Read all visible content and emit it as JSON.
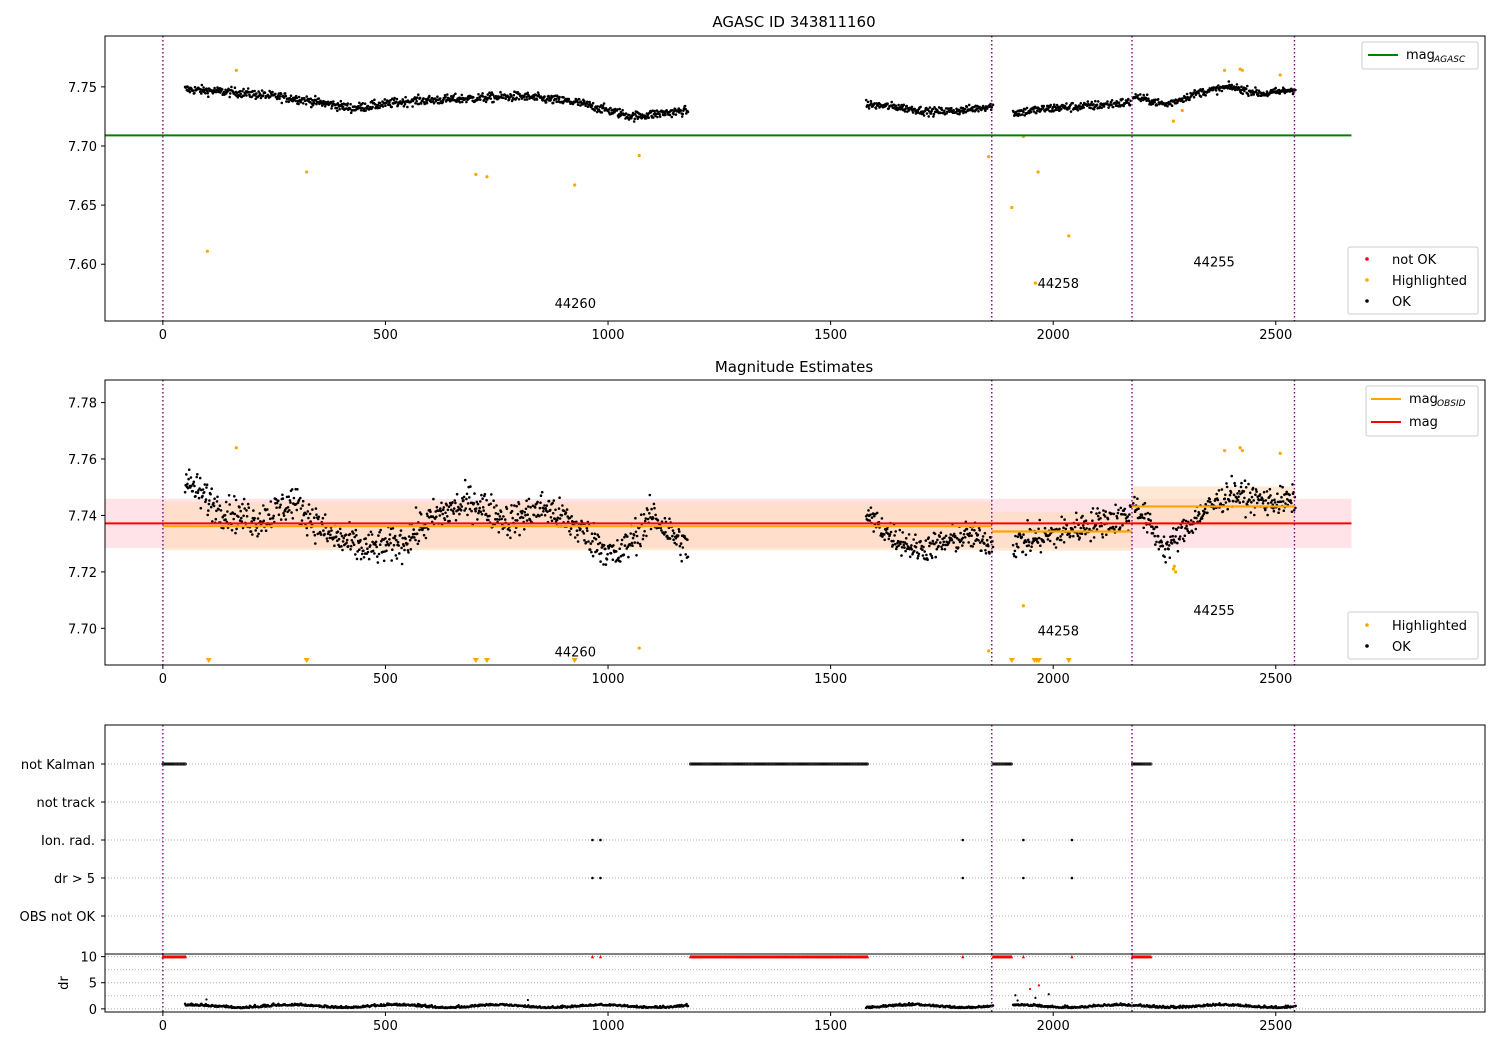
{
  "figure": {
    "title": "AGASC ID 343811160",
    "x_ticks": [
      0,
      500,
      1000,
      1500,
      2000,
      2500
    ],
    "obsid_boundaries": [
      0,
      1862,
      2177,
      2542
    ],
    "colors": {
      "ok": "#000000",
      "highlighted": "#ffa500",
      "not_ok": "#ff0000",
      "mag_agasc": "#008000",
      "mag": "#ff0000",
      "mag_obsid": "#ffa500",
      "boundary": "#800080",
      "band_red": "#ffc0cb",
      "band_orange": "#ffdab9"
    }
  },
  "chart_data": [
    {
      "id": "agasc",
      "type": "scatter",
      "title": "",
      "xlim": [
        -130,
        2970
      ],
      "ylim": [
        7.552,
        7.793
      ],
      "y_ticks": [
        7.6,
        7.65,
        7.7,
        7.75
      ],
      "y_tick_labels": [
        "7.60",
        "7.65",
        "7.70",
        "7.75"
      ],
      "mag_agasc": {
        "value": 7.709,
        "x_range": [
          -130,
          2670
        ]
      },
      "legend_lines": [
        {
          "label": "mag",
          "sub": "AGASC",
          "color": "#008000"
        }
      ],
      "legend_points": [
        {
          "label": "not OK",
          "color": "#ff0000"
        },
        {
          "label": "Highlighted",
          "color": "#ffa500"
        },
        {
          "label": "OK",
          "color": "#000000"
        }
      ],
      "obsid_labels": [
        {
          "text": "44260",
          "x": 880,
          "y": 7.563
        },
        {
          "text": "44258",
          "x": 1965,
          "y": 7.58
        },
        {
          "text": "44255",
          "x": 2315,
          "y": 7.598
        }
      ],
      "segments": [
        {
          "x0": 50,
          "x1": 1180,
          "base": [
            7.748,
            7.745,
            7.74,
            7.732,
            7.738,
            7.74,
            7.742,
            7.737,
            7.725,
            7.73
          ],
          "amp": 0.007
        },
        {
          "x0": 1580,
          "x1": 1865,
          "base": [
            7.735,
            7.733,
            7.729,
            7.73,
            7.734
          ],
          "amp": 0.006
        },
        {
          "x0": 1910,
          "x1": 2175,
          "base": [
            7.728,
            7.732,
            7.734,
            7.737
          ],
          "amp": 0.007
        },
        {
          "x0": 2180,
          "x1": 2545,
          "base": [
            7.742,
            7.735,
            7.745,
            7.75,
            7.744,
            7.748
          ],
          "amp": 0.006
        }
      ],
      "highlighted_points": [
        [
          100,
          7.611
        ],
        [
          165,
          7.764
        ],
        [
          323,
          7.678
        ],
        [
          703,
          7.676
        ],
        [
          728,
          7.674
        ],
        [
          925,
          7.667
        ],
        [
          1070,
          7.692
        ],
        [
          1855,
          7.691
        ],
        [
          1907,
          7.648
        ],
        [
          1933,
          7.708
        ],
        [
          1960,
          7.584
        ],
        [
          1966,
          7.678
        ],
        [
          2035,
          7.624
        ],
        [
          2270,
          7.721
        ],
        [
          2290,
          7.73
        ],
        [
          2385,
          7.764
        ],
        [
          2420,
          7.765
        ],
        [
          2425,
          7.764
        ],
        [
          2510,
          7.76
        ]
      ]
    },
    {
      "id": "estimates",
      "type": "scatter",
      "title": "Magnitude Estimates",
      "xlim": [
        -130,
        2970
      ],
      "ylim": [
        7.687,
        7.788
      ],
      "y_ticks": [
        7.7,
        7.72,
        7.74,
        7.76,
        7.78
      ],
      "y_tick_labels": [
        "7.70",
        "7.72",
        "7.74",
        "7.76",
        "7.78"
      ],
      "mag": {
        "value": 7.7372,
        "band": [
          7.7285,
          7.7459
        ],
        "x_range": [
          -130,
          2670
        ]
      },
      "mag_obsid": [
        {
          "x0": 0,
          "x1": 1862,
          "value": 7.7362,
          "band": [
            7.7277,
            7.7447
          ]
        },
        {
          "x0": 1862,
          "x1": 2177,
          "value": 7.7343,
          "band": [
            7.7275,
            7.7411
          ]
        },
        {
          "x0": 2177,
          "x1": 2542,
          "value": 7.7432,
          "band": [
            7.7361,
            7.7503
          ]
        }
      ],
      "legend_lines": [
        {
          "label": "mag",
          "sub": "OBSID",
          "color": "#ffa500"
        },
        {
          "label": "mag",
          "sub": "",
          "color": "#ff0000"
        }
      ],
      "legend_points": [
        {
          "label": "Highlighted",
          "color": "#ffa500"
        },
        {
          "label": "OK",
          "color": "#000000"
        }
      ],
      "obsid_labels": [
        {
          "text": "44260",
          "x": 880,
          "y": 7.69
        },
        {
          "text": "44258",
          "x": 1965,
          "y": 7.6975
        },
        {
          "text": "44255",
          "x": 2315,
          "y": 7.7047
        }
      ],
      "segments": [
        {
          "x0": 50,
          "x1": 1180,
          "base": [
            7.752,
            7.742,
            7.738,
            7.745,
            7.733,
            7.728,
            7.73,
            7.74,
            7.745,
            7.738,
            7.743,
            7.735,
            7.725,
            7.74,
            7.728
          ],
          "amp": 0.01
        },
        {
          "x0": 1580,
          "x1": 1865,
          "base": [
            7.74,
            7.733,
            7.728,
            7.73,
            7.733,
            7.73
          ],
          "amp": 0.008
        },
        {
          "x0": 1910,
          "x1": 2175,
          "base": [
            7.73,
            7.733,
            7.737,
            7.74
          ],
          "amp": 0.009
        },
        {
          "x0": 2180,
          "x1": 2545,
          "base": [
            7.745,
            7.728,
            7.74,
            7.748,
            7.745,
            7.745
          ],
          "amp": 0.008
        }
      ],
      "highlighted_points": [
        [
          165,
          7.764
        ],
        [
          1070,
          7.693
        ],
        [
          1855,
          7.692
        ],
        [
          1933,
          7.708
        ],
        [
          2270,
          7.721
        ],
        [
          2272,
          7.722
        ],
        [
          2275,
          7.72
        ],
        [
          2385,
          7.763
        ],
        [
          2420,
          7.764
        ],
        [
          2425,
          7.763
        ],
        [
          2510,
          7.762
        ]
      ],
      "off_scale_markers": [
        103,
        323,
        703,
        728,
        925,
        1907,
        1958,
        1963,
        1968,
        2035
      ]
    },
    {
      "id": "flags",
      "type": "scatter",
      "title": "",
      "xlim": [
        -130,
        2970
      ],
      "rows": [
        "not Kalman",
        "not track",
        "Ion. rad.",
        "dr > 5",
        "OBS not OK"
      ],
      "ranges": {
        "not Kalman": [
          [
            0,
            52
          ],
          [
            1185,
            1585
          ],
          [
            1865,
            1908
          ],
          [
            2178,
            2220
          ]
        ],
        "not track": [],
        "Ion. rad.": [
          [
            965,
            965
          ],
          [
            983,
            983
          ],
          [
            1797,
            1797
          ],
          [
            1933,
            1933
          ],
          [
            2042,
            2042
          ]
        ],
        "dr > 5": [
          [
            965,
            965
          ],
          [
            983,
            983
          ],
          [
            1797,
            1797
          ],
          [
            1933,
            1933
          ],
          [
            2042,
            2042
          ]
        ],
        "OBS not OK": []
      }
    },
    {
      "id": "dr",
      "type": "scatter",
      "title": "",
      "ylabel": "dr",
      "xlim": [
        -130,
        2970
      ],
      "ylim": [
        -0.6,
        10.5
      ],
      "y_ticks": [
        0,
        5,
        10
      ],
      "y_tick_labels": [
        "0",
        "5",
        "10"
      ],
      "capped_value": 10,
      "capped_ranges": [
        [
          0,
          52
        ],
        [
          965,
          965
        ],
        [
          983,
          983
        ],
        [
          1185,
          1585
        ],
        [
          1797,
          1797
        ],
        [
          1865,
          1908
        ],
        [
          1933,
          1933
        ],
        [
          2042,
          2042
        ],
        [
          2178,
          2220
        ]
      ],
      "ok_segments": [
        [
          50,
          1180
        ],
        [
          1580,
          1865
        ],
        [
          1910,
          2175
        ],
        [
          2180,
          2545
        ]
      ],
      "scatter_points": [
        [
          1915,
          2.6
        ],
        [
          1920,
          1.6
        ],
        [
          1948,
          3.8
        ],
        [
          1968,
          4.5
        ],
        [
          1990,
          2.8
        ],
        [
          1960,
          2.1
        ],
        [
          98,
          1.8
        ],
        [
          820,
          1.7
        ]
      ]
    }
  ]
}
